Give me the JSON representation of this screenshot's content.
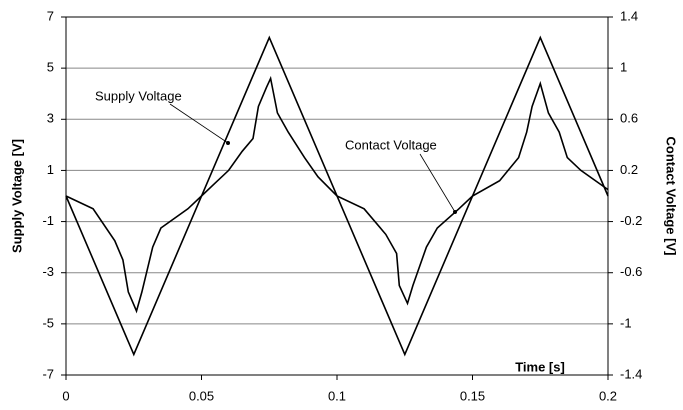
{
  "chart_data": {
    "type": "line",
    "xlabel": "Time [s]",
    "ylabel": "Supply Voltage [V]",
    "y2label": "Contact Voltage [V]",
    "xlim": [
      0,
      0.2
    ],
    "xticks": [
      0,
      0.05,
      0.1,
      0.15,
      0.2
    ],
    "ylim": [
      -7,
      7
    ],
    "yticks": [
      7,
      5,
      3,
      1,
      -1,
      -3,
      -5,
      -7
    ],
    "y2lim": [
      -1.4,
      1.4
    ],
    "y2ticks": [
      1.4,
      1,
      0.6,
      0.2,
      -0.2,
      -0.6,
      -1,
      -1.4
    ],
    "grid": true,
    "series": [
      {
        "name": "Supply Voltage",
        "color": "#000000",
        "x": [
          0,
          0.025,
          0.075,
          0.125,
          0.175,
          0.2
        ],
        "values": [
          0,
          -6.2,
          6.2,
          -6.2,
          6.2,
          0
        ]
      },
      {
        "name": "Contact Voltage",
        "color": "#000000",
        "axis": "y2",
        "x": [
          0,
          0.01,
          0.018,
          0.021,
          0.023,
          0.025,
          0.026,
          0.028,
          0.032,
          0.035,
          0.045,
          0.05,
          0.055,
          0.06,
          0.065,
          0.069,
          0.071,
          0.074,
          0.0755,
          0.078,
          0.082,
          0.088,
          0.093,
          0.1,
          0.11,
          0.118,
          0.122,
          0.123,
          0.126,
          0.128,
          0.133,
          0.137,
          0.145,
          0.15,
          0.16,
          0.167,
          0.17,
          0.172,
          0.175,
          0.178,
          0.182,
          0.185,
          0.19,
          0.2
        ],
        "values": [
          0,
          -0.1,
          -0.35,
          -0.5,
          -0.75,
          -0.85,
          -0.9,
          -0.75,
          -0.4,
          -0.25,
          -0.1,
          0,
          0.1,
          0.2,
          0.35,
          0.45,
          0.7,
          0.85,
          0.92,
          0.65,
          0.5,
          0.3,
          0.15,
          0,
          -0.1,
          -0.3,
          -0.45,
          -0.7,
          -0.84,
          -0.7,
          -0.4,
          -0.25,
          -0.1,
          0,
          0.12,
          0.3,
          0.5,
          0.7,
          0.88,
          0.65,
          0.5,
          0.3,
          0.2,
          0.05
        ]
      }
    ],
    "annotations": [
      "Supply Voltage",
      "Contact Voltage"
    ]
  }
}
